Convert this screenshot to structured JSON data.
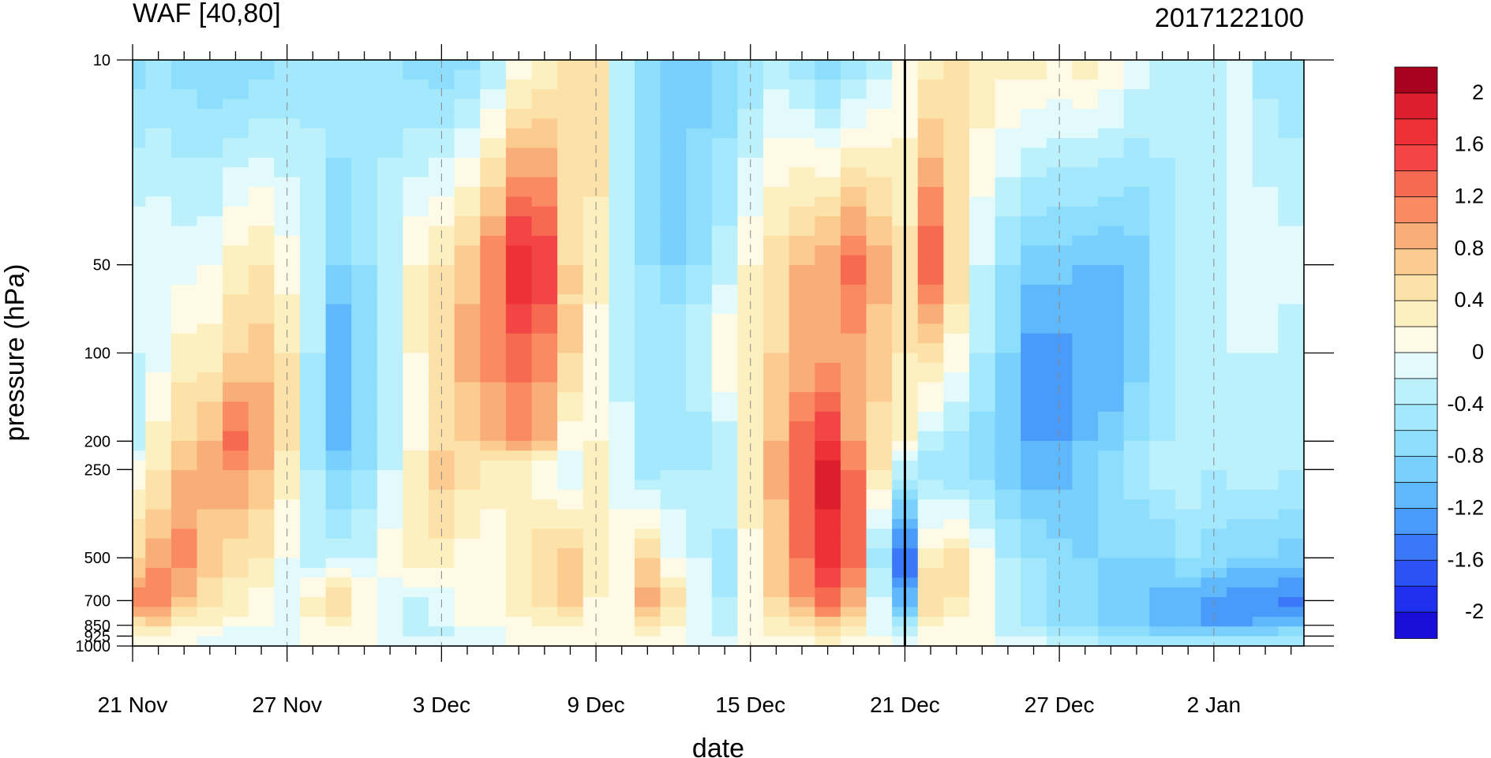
{
  "chart_data": {
    "type": "heatmap",
    "title_left": "WAF [40,80]",
    "title_right": "2017122100",
    "xlabel": "date",
    "ylabel": "pressure (hPa)",
    "x_tick_labels": [
      "21 Nov",
      "27 Nov",
      "3 Dec",
      "9 Dec",
      "15 Dec",
      "21 Dec",
      "27 Dec",
      "2 Jan"
    ],
    "x_dates": [
      "21 Nov",
      "22 Nov",
      "23 Nov",
      "24 Nov",
      "25 Nov",
      "26 Nov",
      "27 Nov",
      "28 Nov",
      "29 Nov",
      "30 Nov",
      "1 Dec",
      "2 Dec",
      "3 Dec",
      "4 Dec",
      "5 Dec",
      "6 Dec",
      "7 Dec",
      "8 Dec",
      "9 Dec",
      "10 Dec",
      "11 Dec",
      "12 Dec",
      "13 Dec",
      "14 Dec",
      "15 Dec",
      "16 Dec",
      "17 Dec",
      "18 Dec",
      "19 Dec",
      "20 Dec",
      "21 Dec",
      "22 Dec",
      "23 Dec",
      "24 Dec",
      "25 Dec",
      "26 Dec",
      "27 Dec",
      "28 Dec",
      "29 Dec",
      "30 Dec",
      "31 Dec",
      "1 Jan",
      "2 Jan",
      "3 Jan",
      "4 Jan",
      "5 Jan"
    ],
    "y_tick_labels": [
      "10",
      "50",
      "100",
      "200",
      "250",
      "500",
      "700",
      "850",
      "925",
      "1000"
    ],
    "y_scale": "log",
    "ylim": [
      1000,
      10
    ],
    "forecast_start": "21 Dec",
    "colorbar": {
      "labels": [
        "2",
        "1.6",
        "1.2",
        "0.8",
        "0.4",
        "0",
        "-0.4",
        "-0.8",
        "-1.2",
        "-1.6",
        "-2"
      ],
      "levels": [
        -2.2,
        -2.0,
        -1.8,
        -1.6,
        -1.4,
        -1.2,
        -1.0,
        -0.8,
        -0.6,
        -0.4,
        -0.2,
        0.0,
        0.2,
        0.4,
        0.6,
        0.8,
        1.0,
        1.2,
        1.4,
        1.6,
        1.8,
        2.0,
        2.2
      ],
      "colors": [
        "#1a0fd9",
        "#2030ee",
        "#2a52f5",
        "#3a78f8",
        "#4a9af9",
        "#5fb8fb",
        "#79d0fc",
        "#8ddefc",
        "#a3e8fc",
        "#bcf1fb",
        "#e3fafc",
        "#fefae6",
        "#fdf0c0",
        "#fce2a8",
        "#fbcb90",
        "#f9ae7a",
        "#f98a62",
        "#f66a52",
        "#f44546",
        "#ee3136",
        "#dc1e2e",
        "#a8001f"
      ]
    },
    "z_levels_hPa": [
      10,
      50,
      100,
      200,
      250,
      500,
      700,
      850,
      925,
      1000
    ],
    "z_values": [
      [
        -0.7,
        -0.6,
        -0.7,
        -0.8,
        -0.8,
        -0.7,
        -0.6,
        -0.5,
        -0.4,
        -0.5,
        -0.6,
        -0.7,
        -0.8,
        -0.7,
        -0.4,
        0.0,
        0.2,
        0.5,
        0.6,
        -0.3,
        -0.8,
        -0.9,
        -0.9,
        -0.8,
        -0.6,
        -0.3,
        -0.5,
        -0.8,
        -0.6,
        -0.3,
        0.0,
        0.3,
        0.5,
        0.4,
        0.3,
        0.3,
        0.2,
        0.3,
        0.2,
        -0.1,
        -0.2,
        -0.3,
        -0.3,
        -0.2,
        -0.5,
        -0.6
      ],
      [
        0.0,
        0.0,
        -0.1,
        0.0,
        0.3,
        0.4,
        0.1,
        -0.2,
        -0.8,
        -0.6,
        -0.2,
        0.2,
        0.4,
        0.7,
        1.2,
        1.8,
        1.6,
        0.6,
        0.3,
        -0.2,
        -0.6,
        -0.8,
        -0.6,
        -0.3,
        0.2,
        0.5,
        0.8,
        1.0,
        1.3,
        0.9,
        0.5,
        1.4,
        0.6,
        -0.2,
        -0.6,
        -0.9,
        -0.9,
        -1.0,
        -1.0,
        -0.9,
        -0.6,
        -0.4,
        -0.3,
        -0.1,
        0.0,
        -0.1
      ],
      [
        -0.2,
        -0.1,
        0.3,
        0.3,
        0.6,
        0.7,
        0.4,
        -0.4,
        -1.2,
        -0.8,
        -0.3,
        0.2,
        0.6,
        0.9,
        1.1,
        1.3,
        1.1,
        0.6,
        0.1,
        -0.3,
        -0.6,
        -0.4,
        -0.2,
        0.2,
        0.4,
        0.6,
        0.8,
        0.9,
        0.9,
        0.7,
        0.4,
        0.5,
        0.1,
        -0.4,
        -0.8,
        -1.3,
        -1.3,
        -1.1,
        -1.2,
        -0.9,
        -0.6,
        -0.4,
        -0.3,
        -0.2,
        -0.2,
        -0.3
      ],
      [
        -0.4,
        0.3,
        0.6,
        0.8,
        1.3,
        1.0,
        0.5,
        -0.5,
        -1.1,
        -0.8,
        -0.4,
        0.1,
        0.5,
        0.6,
        0.8,
        1.0,
        0.8,
        0.1,
        0.2,
        -0.1,
        -0.4,
        -0.5,
        -0.5,
        -0.3,
        0.3,
        0.8,
        1.3,
        1.6,
        1.0,
        0.5,
        0.2,
        -0.3,
        -0.5,
        -0.7,
        -1.0,
        -1.2,
        -1.2,
        -1.0,
        -0.9,
        -0.6,
        -0.4,
        -0.3,
        -0.3,
        -0.3,
        -0.3,
        -0.4
      ],
      [
        0.1,
        0.4,
        0.8,
        0.9,
        1.0,
        0.8,
        0.3,
        -0.4,
        -0.8,
        -0.6,
        -0.2,
        0.4,
        0.7,
        0.5,
        0.3,
        0.2,
        0.0,
        -0.2,
        0.2,
        -0.1,
        -0.5,
        -0.4,
        -0.4,
        -0.2,
        0.4,
        0.9,
        1.4,
        1.9,
        1.2,
        0.4,
        -0.3,
        -0.5,
        -0.6,
        -0.7,
        -0.9,
        -1.1,
        -1.1,
        -0.9,
        -0.7,
        -0.5,
        -0.3,
        -0.2,
        -0.4,
        -0.3,
        -0.3,
        -0.4
      ],
      [
        0.6,
        0.9,
        1.1,
        0.7,
        0.5,
        0.4,
        0.0,
        -0.3,
        -0.3,
        -0.2,
        0.1,
        0.3,
        0.3,
        0.1,
        0.1,
        0.3,
        0.6,
        0.7,
        0.3,
        0.1,
        0.6,
        0.0,
        -0.2,
        -0.5,
        0.1,
        0.6,
        1.2,
        1.7,
        1.3,
        -0.5,
        -1.6,
        0.3,
        0.5,
        0.1,
        -0.4,
        -0.6,
        -0.7,
        -0.8,
        -0.8,
        -0.8,
        -0.8,
        -0.6,
        -0.7,
        -0.8,
        -0.8,
        -0.9
      ],
      [
        1.1,
        1.2,
        0.8,
        0.5,
        0.3,
        0.1,
        -0.2,
        0.3,
        0.6,
        0.2,
        -0.1,
        -0.2,
        -0.1,
        0.1,
        0.1,
        0.3,
        0.5,
        0.8,
        0.2,
        0.2,
        0.9,
        0.5,
        -0.2,
        -0.4,
        0.2,
        0.6,
        1.0,
        1.3,
        0.9,
        -0.2,
        -1.1,
        0.6,
        0.4,
        0.1,
        -0.3,
        -0.6,
        -0.7,
        -0.8,
        -0.9,
        -1.0,
        -1.1,
        -1.1,
        -1.3,
        -1.4,
        -1.4,
        -1.5
      ],
      [
        0.5,
        0.6,
        0.3,
        0.2,
        0.1,
        0.0,
        -0.2,
        0.1,
        0.2,
        0.0,
        -0.2,
        -0.3,
        -0.1,
        0.0,
        0.0,
        0.1,
        0.2,
        0.3,
        0.1,
        0.1,
        0.4,
        0.2,
        -0.2,
        -0.3,
        0.1,
        0.3,
        0.5,
        0.7,
        0.4,
        -0.1,
        -0.5,
        0.2,
        0.1,
        0.0,
        -0.3,
        -0.5,
        -0.6,
        -0.7,
        -0.8,
        -0.9,
        -1.0,
        -1.1,
        -1.2,
        -1.2,
        -1.1,
        -1.0
      ],
      [
        0.2,
        0.2,
        0.1,
        0.0,
        -0.1,
        -0.1,
        -0.2,
        0.0,
        0.1,
        0.0,
        -0.1,
        -0.2,
        -0.3,
        -0.2,
        -0.1,
        0.0,
        0.1,
        0.1,
        0.0,
        0.0,
        0.2,
        0.1,
        -0.1,
        -0.2,
        0.0,
        0.2,
        0.3,
        0.4,
        0.2,
        0.0,
        -0.2,
        0.1,
        0.0,
        0.0,
        -0.2,
        -0.3,
        -0.4,
        -0.5,
        -0.6,
        -0.6,
        -0.7,
        -0.8,
        -0.8,
        -0.8,
        -0.7,
        -0.6
      ],
      [
        0.0,
        0.0,
        0.0,
        -0.1,
        -0.1,
        -0.1,
        -0.1,
        0.0,
        0.0,
        0.0,
        0.0,
        -0.1,
        -0.1,
        -0.1,
        0.0,
        0.0,
        0.0,
        0.0,
        0.0,
        0.0,
        0.1,
        0.0,
        0.0,
        -0.1,
        0.0,
        0.1,
        0.1,
        0.2,
        0.1,
        0.0,
        -0.1,
        0.0,
        0.0,
        0.0,
        -0.1,
        -0.1,
        -0.2,
        -0.2,
        -0.3,
        -0.3,
        -0.3,
        -0.3,
        -0.3,
        -0.3,
        -0.3,
        -0.3
      ]
    ]
  }
}
